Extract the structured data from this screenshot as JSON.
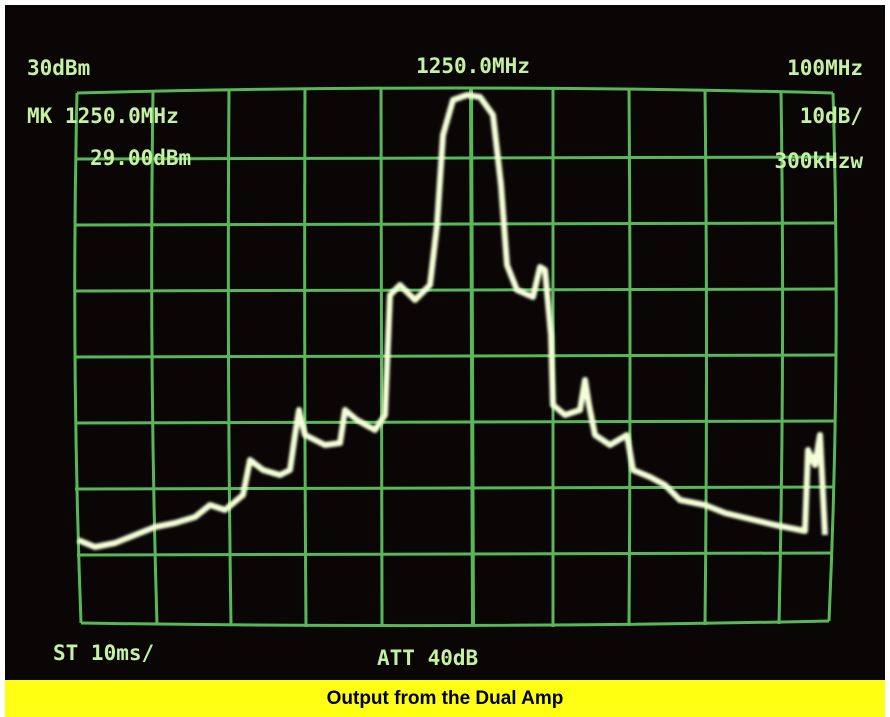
{
  "screen": {
    "ref_level": "30dBm",
    "center_freq": "1250.0MHz",
    "span": "100MHz",
    "marker_freq": "MK 1250.0MHz",
    "scale": "10dB/",
    "marker_level": "29.00dBm",
    "rbw": "300kHzw",
    "sweep": "ST 10ms/",
    "attenuation": "ATT 40dB"
  },
  "caption": "Output from the Dual Amp"
}
